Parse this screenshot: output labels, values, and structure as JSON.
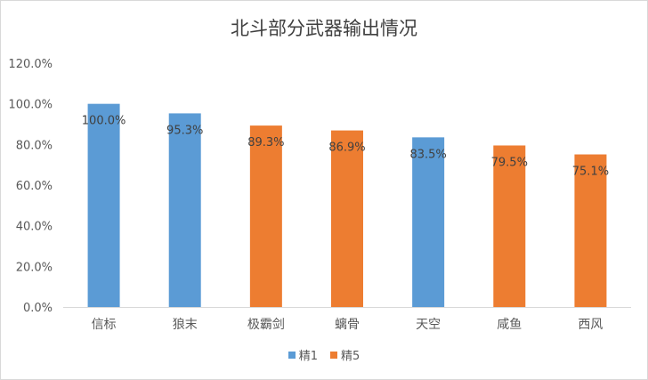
{
  "chart_data": {
    "type": "bar",
    "title": "北斗部分武器输出情况",
    "xlabel": "",
    "ylabel": "",
    "categories": [
      "信标",
      "狼末",
      "极霸剑",
      "螭骨",
      "天空",
      "咸鱼",
      "西风"
    ],
    "values": [
      100.0,
      95.3,
      89.3,
      86.9,
      83.5,
      79.5,
      75.1
    ],
    "data_labels": [
      "100.0%",
      "95.3%",
      "89.3%",
      "86.9%",
      "83.5%",
      "79.5%",
      "75.1%"
    ],
    "bar_series": [
      "精1",
      "精1",
      "精5",
      "精5",
      "精1",
      "精5",
      "精5"
    ],
    "series": [
      {
        "name": "精1",
        "color": "#5b9bd5"
      },
      {
        "name": "精5",
        "color": "#ed7d31"
      }
    ],
    "ylim": [
      0,
      120
    ],
    "yticks": [
      0,
      20,
      40,
      60,
      80,
      100,
      120
    ],
    "ytick_labels": [
      "0.0%",
      "20.0%",
      "40.0%",
      "60.0%",
      "80.0%",
      "100.0%",
      "120.0%"
    ],
    "grid": false,
    "legend_position": "bottom"
  }
}
